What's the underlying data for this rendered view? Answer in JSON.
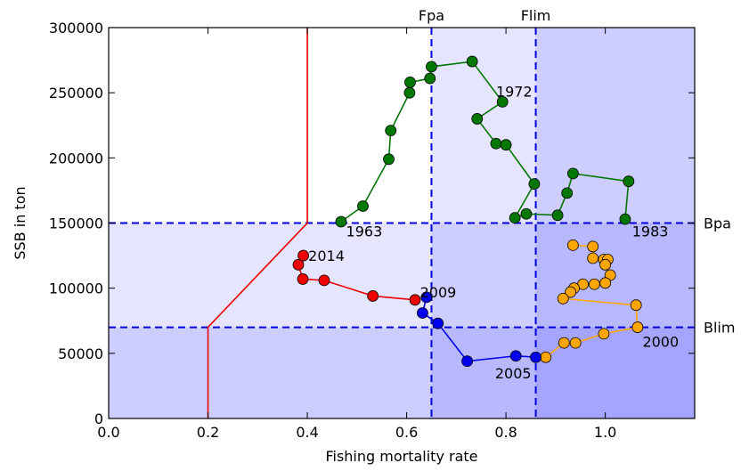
{
  "chart_data": {
    "type": "scatter",
    "xlabel": "Fishing mortality rate",
    "ylabel": "SSB in ton",
    "xlim": [
      0.0,
      1.18
    ],
    "ylim": [
      0,
      300000
    ],
    "xticks": [
      {
        "v": 0.0,
        "label": "0.0"
      },
      {
        "v": 0.2,
        "label": "0.2"
      },
      {
        "v": 0.4,
        "label": "0.4"
      },
      {
        "v": 0.6,
        "label": "0.6"
      },
      {
        "v": 0.8,
        "label": "0.8"
      },
      {
        "v": 1.0,
        "label": "1.0"
      }
    ],
    "yticks": [
      {
        "v": 0,
        "label": "0"
      },
      {
        "v": 50000,
        "label": "50000"
      },
      {
        "v": 100000,
        "label": "100000"
      },
      {
        "v": 150000,
        "label": "150000"
      },
      {
        "v": 200000,
        "label": "200000"
      },
      {
        "v": 250000,
        "label": "250000"
      },
      {
        "v": 300000,
        "label": "300000"
      }
    ],
    "reference_lines": {
      "vertical": [
        {
          "label": "Fpa",
          "x": 0.65
        },
        {
          "label": "Flim",
          "x": 0.86
        }
      ],
      "horizontal": [
        {
          "label": "Bpa",
          "y": 150000
        },
        {
          "label": "Blim",
          "y": 70000
        }
      ],
      "color": "#0000dd"
    },
    "shading_color": "#0000ff",
    "hcr_line": {
      "color": "#ee0000",
      "points": [
        [
          0.2,
          0
        ],
        [
          0.2,
          70000
        ],
        [
          0.4,
          150000
        ],
        [
          0.4,
          300000
        ]
      ]
    },
    "series": [
      {
        "color": "#007700",
        "points": [
          [
            0.468,
            151000
          ],
          [
            0.512,
            163000
          ],
          [
            0.564,
            199000
          ],
          [
            0.568,
            221000
          ],
          [
            0.606,
            250000
          ],
          [
            0.607,
            258000
          ],
          [
            0.647,
            261000
          ],
          [
            0.65,
            270000
          ],
          [
            0.732,
            274000
          ],
          [
            0.793,
            243000
          ],
          [
            0.742,
            230000
          ],
          [
            0.78,
            211000
          ],
          [
            0.8,
            210000
          ],
          [
            0.857,
            180000
          ],
          [
            0.818,
            154000
          ],
          [
            0.841,
            157000
          ],
          [
            0.904,
            156000
          ],
          [
            0.923,
            173000
          ],
          [
            0.935,
            188000
          ],
          [
            1.047,
            182000
          ],
          [
            1.04,
            153000
          ]
        ]
      },
      {
        "color": "#ffa500",
        "points": [
          [
            0.935,
            133000
          ],
          [
            0.975,
            132000
          ],
          [
            0.975,
            123000
          ],
          [
            0.997,
            122000
          ],
          [
            1.005,
            122000
          ],
          [
            1.0,
            118000
          ],
          [
            1.01,
            110000
          ],
          [
            0.978,
            103000
          ],
          [
            1.0,
            104000
          ],
          [
            0.955,
            103000
          ],
          [
            0.937,
            100000
          ],
          [
            0.93,
            97000
          ],
          [
            0.915,
            92000
          ],
          [
            1.062,
            87000
          ],
          [
            1.065,
            70000
          ],
          [
            0.997,
            65000
          ],
          [
            0.94,
            58000
          ],
          [
            0.917,
            58000
          ],
          [
            0.88,
            47000
          ]
        ]
      },
      {
        "color": "#0000ee",
        "points": [
          [
            0.64,
            93000
          ],
          [
            0.632,
            81000
          ],
          [
            0.663,
            73000
          ],
          [
            0.722,
            44000
          ],
          [
            0.82,
            48000
          ],
          [
            0.86,
            47000
          ]
        ],
        "line_first_segment": false
      },
      {
        "color": "#ee0000",
        "points": [
          [
            0.617,
            91000
          ],
          [
            0.532,
            94000
          ],
          [
            0.434,
            106000
          ],
          [
            0.391,
            107000
          ],
          [
            0.382,
            118000
          ],
          [
            0.392,
            125000
          ]
        ]
      }
    ],
    "point_labels": [
      {
        "text": "1963",
        "x": 0.478,
        "y": 144000
      },
      {
        "text": "1972",
        "x": 0.78,
        "y": 251000
      },
      {
        "text": "1983",
        "x": 1.054,
        "y": 144000
      },
      {
        "text": "2014",
        "x": 0.402,
        "y": 125000
      },
      {
        "text": "2009",
        "x": 0.627,
        "y": 97000
      },
      {
        "text": "2005",
        "x": 0.778,
        "y": 35000
      },
      {
        "text": "2000",
        "x": 1.075,
        "y": 59000
      }
    ]
  }
}
